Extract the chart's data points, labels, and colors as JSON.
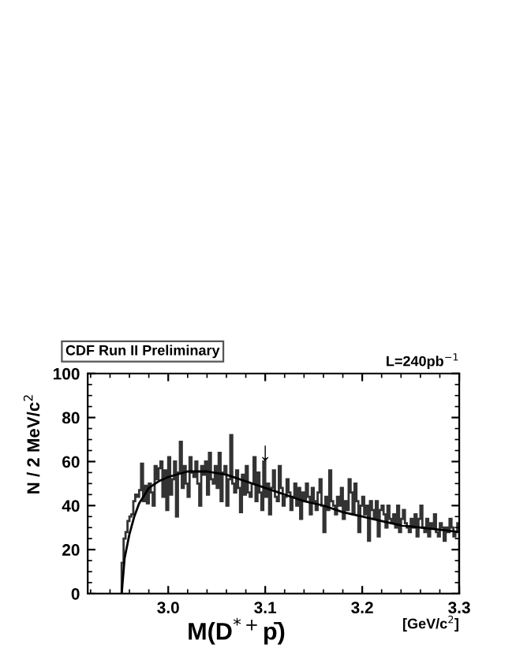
{
  "chart_data": [
    {
      "type": "histogram",
      "xlabel": "M(D$^{*+}$p̄)",
      "ylabel": "N / 2 MeV/c$^{2}$",
      "bins": [
        2.952,
        2.954,
        2.956,
        2.958,
        2.96,
        2.962,
        2.964,
        2.966,
        2.968,
        2.97,
        2.972,
        2.974,
        2.976,
        2.978,
        2.98,
        2.982,
        2.984,
        2.986,
        2.988,
        2.99,
        2.992,
        2.994,
        2.996,
        2.998,
        3.0,
        3.002,
        3.004,
        3.006,
        3.008,
        3.01,
        3.012,
        3.014,
        3.016,
        3.018,
        3.02,
        3.022,
        3.024,
        3.026,
        3.028,
        3.03,
        3.032,
        3.034,
        3.036,
        3.038,
        3.04,
        3.042,
        3.044,
        3.046,
        3.048,
        3.05,
        3.052,
        3.054,
        3.056,
        3.058,
        3.06,
        3.062,
        3.064,
        3.066,
        3.068,
        3.07,
        3.072,
        3.074,
        3.076,
        3.078,
        3.08,
        3.082,
        3.084,
        3.086,
        3.088,
        3.09,
        3.092,
        3.094,
        3.096,
        3.098,
        3.1,
        3.102,
        3.104,
        3.106,
        3.108,
        3.11,
        3.112,
        3.114,
        3.116,
        3.118,
        3.12,
        3.122,
        3.124,
        3.126,
        3.128,
        3.13,
        3.132,
        3.134,
        3.136,
        3.138,
        3.14,
        3.142,
        3.144,
        3.146,
        3.148,
        3.15,
        3.152,
        3.154,
        3.156,
        3.158,
        3.16,
        3.162,
        3.164,
        3.166,
        3.168,
        3.17,
        3.172,
        3.174,
        3.176,
        3.178,
        3.18,
        3.182,
        3.184,
        3.186,
        3.188,
        3.19,
        3.192,
        3.194,
        3.196,
        3.198,
        3.2,
        3.202,
        3.204,
        3.206,
        3.208,
        3.21,
        3.212,
        3.214,
        3.216,
        3.218,
        3.22,
        3.222,
        3.224,
        3.226,
        3.228,
        3.23,
        3.232,
        3.234,
        3.236,
        3.238,
        3.24,
        3.242,
        3.244,
        3.246,
        3.248,
        3.25,
        3.252,
        3.254,
        3.256,
        3.258,
        3.26,
        3.262,
        3.264,
        3.266,
        3.268,
        3.27,
        3.272,
        3.274,
        3.276,
        3.278,
        3.28,
        3.282,
        3.284,
        3.286,
        3.288,
        3.29,
        3.292,
        3.294,
        3.296,
        3.298,
        3.3
      ],
      "values": [
        14,
        25,
        28,
        33,
        35,
        36,
        42,
        45,
        44,
        47,
        59,
        42,
        49,
        41,
        50,
        46,
        40,
        58,
        52,
        57,
        60,
        44,
        56,
        38,
        62,
        45,
        52,
        60,
        35,
        55,
        69,
        48,
        58,
        50,
        44,
        62,
        55,
        53,
        60,
        50,
        40,
        58,
        54,
        60,
        45,
        64,
        52,
        50,
        58,
        48,
        64,
        42,
        55,
        58,
        40,
        52,
        72,
        50,
        46,
        56,
        48,
        37,
        54,
        45,
        58,
        46,
        44,
        50,
        62,
        42,
        55,
        46,
        38,
        60,
        44,
        50,
        36,
        48,
        56,
        44,
        42,
        58,
        48,
        40,
        44,
        52,
        46,
        38,
        44,
        50,
        40,
        48,
        34,
        46,
        42,
        50,
        44,
        36,
        48,
        42,
        38,
        46,
        52,
        40,
        28,
        44,
        38,
        56,
        42,
        40,
        36,
        44,
        40,
        48,
        34,
        42,
        38,
        52,
        46,
        36,
        50,
        42,
        28,
        40,
        44,
        36,
        40,
        24,
        42,
        38,
        34,
        42,
        26,
        38,
        40,
        36,
        30,
        40,
        34,
        32,
        36,
        30,
        40,
        28,
        34,
        38,
        32,
        30,
        28,
        34,
        30,
        36,
        26,
        34,
        40,
        30,
        28,
        34,
        26,
        32,
        30,
        36,
        28,
        26,
        32,
        30,
        24,
        30,
        28,
        34,
        30,
        26,
        28,
        32
      ],
      "color": "#333333",
      "series": [
        {
          "type": "line",
          "color": "#000000",
          "x": [
            2.952,
            2.955,
            2.96,
            2.965,
            2.97,
            2.98,
            2.99,
            3.0,
            3.02,
            3.04,
            3.06,
            3.08,
            3.1,
            3.12,
            3.14,
            3.16,
            3.18,
            3.2,
            3.22,
            3.24,
            3.26,
            3.28,
            3.3
          ],
          "values": [
            0,
            16,
            27,
            35,
            41,
            48,
            51,
            53,
            55.5,
            55.5,
            54,
            51,
            48,
            45,
            42,
            40,
            37,
            35,
            33,
            31,
            30,
            29,
            28
          ]
        }
      ],
      "xlim": [
        2.917,
        3.3
      ],
      "ylim": [
        0,
        100
      ],
      "xticks": [
        {
          "value": 3.0,
          "label": "3.0"
        },
        3.1,
        3.2,
        3.3
      ],
      "yticks": [
        0,
        20,
        40,
        60,
        80,
        100
      ],
      "grid": false,
      "legend": false,
      "annotations": [
        "CDF Run II Preliminary",
        "L=240pb$^{−1}$",
        "[GeV/c$^{2}$]",
        {
          "text": "↓",
          "x": 3.1,
          "y": 58
        }
      ]
    }
  ]
}
